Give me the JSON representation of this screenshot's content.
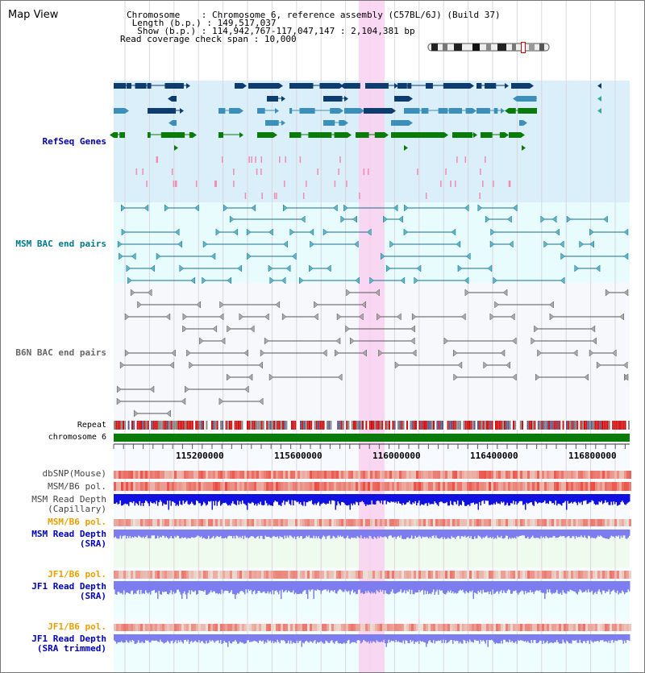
{
  "header": {
    "title": "Map View",
    "info": [
      {
        "label": "Chromosome",
        "value": "Chromosome 6, reference assembly (C57BL/6J) (Build 37)"
      },
      {
        "label": "Length (b.p.)",
        "value": "149,517,037"
      },
      {
        "label": "Show (b.p.)",
        "value": "114,942,767-117,047,147 : 2,104,381 bp"
      },
      {
        "label": "Read coverage check span",
        "value": "10,000"
      }
    ]
  },
  "tracks": {
    "refseq": "RefSeq Genes",
    "msm_bac": "MSM BAC end pairs",
    "b6n_bac": "B6N BAC end pairs",
    "repeat": "Repeat",
    "chromosome": "chromosome 6",
    "dbsnp": "dbSNP(Mouse)",
    "msm_b6_pol_1": "MSM/B6 pol.",
    "msm_depth_cap_1": "MSM Read Depth",
    "msm_depth_cap_2": "(Capillary)",
    "msm_b6_pol_2": "MSM/B6 pol.",
    "msm_depth_sra_1": "MSM Read Depth",
    "msm_depth_sra_2": "(SRA)",
    "jf1_b6_pol_1": "JF1/B6 pol.",
    "jf1_depth_sra_1": "JF1 Read Depth",
    "jf1_depth_sra_2": "(SRA)",
    "jf1_b6_pol_2": "JF1/B6 pol.",
    "jf1_depth_trim_1": "JF1 Read Depth",
    "jf1_depth_trim_2": "(SRA trimmed)"
  },
  "axis": {
    "ticks": [
      "115200000",
      "115600000",
      "116000000",
      "116400000",
      "116800000"
    ]
  },
  "colors": {
    "refseq_label": "#0000aa",
    "msm_bac_label": "#007a8a",
    "pol_label_orange": "#e8a000",
    "depth_label_blue": "#0000bb",
    "highlight": "#f9d0f0",
    "gene_dark": "#0c3d6e",
    "gene_mid": "#3c8fb8",
    "gene_green": "#0a7a0a",
    "chromosome_bar": "#0a7a0a",
    "depth_capillary": "#1010e0",
    "depth_sra": "#7d7df0"
  }
}
